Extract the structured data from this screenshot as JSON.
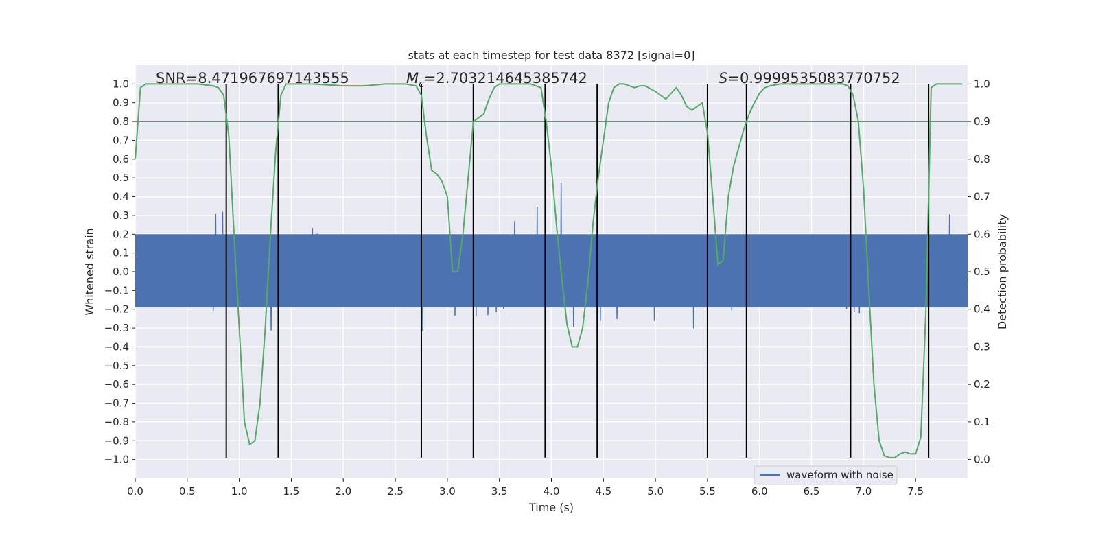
{
  "chart_data": {
    "type": "line",
    "title": "stats at each timestep for test data 8372 [signal=0]",
    "xlabel": "Time (s)",
    "ylabel": "Whitened strain",
    "y2label": "Detection probability",
    "xlim": [
      0,
      8
    ],
    "ylim": [
      -1.1,
      1.1
    ],
    "y2lim": [
      -0.05,
      1.05
    ],
    "xticks": [
      "0.0",
      "0.5",
      "1.0",
      "1.5",
      "2.0",
      "2.5",
      "3.0",
      "3.5",
      "4.0",
      "4.5",
      "5.0",
      "5.5",
      "6.0",
      "6.5",
      "7.0",
      "7.5"
    ],
    "xtick_values": [
      0,
      0.5,
      1,
      1.5,
      2,
      2.5,
      3,
      3.5,
      4,
      4.5,
      5,
      5.5,
      6,
      6.5,
      7,
      7.5
    ],
    "yticks": [
      "1.0",
      "0.9",
      "0.8",
      "0.7",
      "0.6",
      "0.5",
      "0.4",
      "0.3",
      "0.2",
      "0.1",
      "0.0",
      "−0.1",
      "−0.2",
      "−0.3",
      "−0.4",
      "−0.5",
      "−0.6",
      "−0.7",
      "−0.8",
      "−0.9",
      "−1.0"
    ],
    "ytick_values": [
      1.0,
      0.9,
      0.8,
      0.7,
      0.6,
      0.5,
      0.4,
      0.3,
      0.2,
      0.1,
      0.0,
      -0.1,
      -0.2,
      -0.3,
      -0.4,
      -0.5,
      -0.6,
      -0.7,
      -0.8,
      -0.9,
      -1.0
    ],
    "y2ticks": [
      "1.0",
      "0.9",
      "0.8",
      "0.7",
      "0.6",
      "0.5",
      "0.4",
      "0.3",
      "0.2",
      "0.1",
      "0.0"
    ],
    "y2tick_values": [
      1.0,
      0.9,
      0.8,
      0.7,
      0.6,
      0.5,
      0.4,
      0.3,
      0.2,
      0.1,
      0.0
    ],
    "annotations": {
      "snr": "SNR=8.471967697143555",
      "mc_symbol": "M",
      "mc_sub": "c",
      "mc_value": "=2.703214645385742",
      "s_symbol": "S",
      "s_value": "=0.9999535083770752"
    },
    "threshold": 0.8,
    "vlines": [
      0.875,
      1.375,
      2.75,
      3.25,
      3.94,
      4.44,
      5.5,
      5.875,
      6.875,
      7.625
    ],
    "probability": {
      "x": [
        0,
        0.05,
        0.1,
        0.2,
        0.4,
        0.6,
        0.75,
        0.8,
        0.85,
        0.9,
        0.95,
        1.0,
        1.05,
        1.1,
        1.15,
        1.2,
        1.25,
        1.3,
        1.35,
        1.4,
        1.45,
        1.5,
        1.7,
        2.0,
        2.2,
        2.4,
        2.6,
        2.7,
        2.75,
        2.8,
        2.85,
        2.9,
        2.95,
        3.0,
        3.05,
        3.1,
        3.15,
        3.2,
        3.25,
        3.3,
        3.35,
        3.4,
        3.45,
        3.5,
        3.6,
        3.7,
        3.8,
        3.9,
        3.95,
        4.0,
        4.05,
        4.1,
        4.15,
        4.2,
        4.25,
        4.3,
        4.35,
        4.4,
        4.45,
        4.5,
        4.55,
        4.6,
        4.65,
        4.7,
        4.75,
        4.8,
        4.85,
        4.9,
        5.0,
        5.05,
        5.1,
        5.15,
        5.2,
        5.25,
        5.3,
        5.35,
        5.4,
        5.45,
        5.5,
        5.55,
        5.6,
        5.65,
        5.7,
        5.75,
        5.8,
        5.85,
        5.9,
        5.95,
        6.0,
        6.05,
        6.1,
        6.2,
        6.4,
        6.6,
        6.8,
        6.85,
        6.9,
        6.95,
        7.0,
        7.05,
        7.1,
        7.15,
        7.2,
        7.25,
        7.3,
        7.35,
        7.4,
        7.45,
        7.5,
        7.55,
        7.6,
        7.65,
        7.7,
        7.75,
        7.8,
        7.95
      ],
      "y": [
        0.8,
        0.99,
        1.0,
        1.0,
        1.0,
        1.0,
        0.995,
        0.99,
        0.97,
        0.86,
        0.6,
        0.35,
        0.1,
        0.04,
        0.05,
        0.15,
        0.35,
        0.6,
        0.82,
        0.97,
        1.0,
        1.0,
        1.0,
        0.995,
        0.995,
        1.0,
        1.0,
        0.995,
        0.97,
        0.86,
        0.77,
        0.76,
        0.74,
        0.7,
        0.5,
        0.5,
        0.6,
        0.75,
        0.9,
        0.91,
        0.92,
        0.96,
        0.99,
        1.0,
        1.0,
        1.0,
        1.0,
        0.99,
        0.9,
        0.78,
        0.62,
        0.48,
        0.36,
        0.3,
        0.3,
        0.35,
        0.47,
        0.63,
        0.75,
        0.85,
        0.95,
        0.99,
        1.0,
        1.0,
        0.995,
        0.99,
        0.995,
        0.995,
        0.98,
        0.97,
        0.96,
        0.975,
        0.99,
        0.97,
        0.94,
        0.93,
        0.94,
        0.95,
        0.87,
        0.7,
        0.52,
        0.53,
        0.7,
        0.78,
        0.83,
        0.88,
        0.92,
        0.95,
        0.975,
        0.99,
        0.995,
        1.0,
        1.0,
        1.0,
        1.0,
        0.995,
        0.97,
        0.9,
        0.72,
        0.45,
        0.2,
        0.05,
        0.01,
        0.005,
        0.005,
        0.015,
        0.02,
        0.015,
        0.015,
        0.06,
        0.4,
        0.99,
        1.0,
        1.0,
        1.0,
        1.0
      ]
    },
    "series": [
      {
        "name": "waveform with noise",
        "color": "#4c72b0"
      },
      {
        "name": "detection probability",
        "color": "#55a868"
      }
    ],
    "threshold_color": "#c44e52",
    "vline_color": "#000000",
    "legend_position": "bottom-right",
    "grid": true
  }
}
